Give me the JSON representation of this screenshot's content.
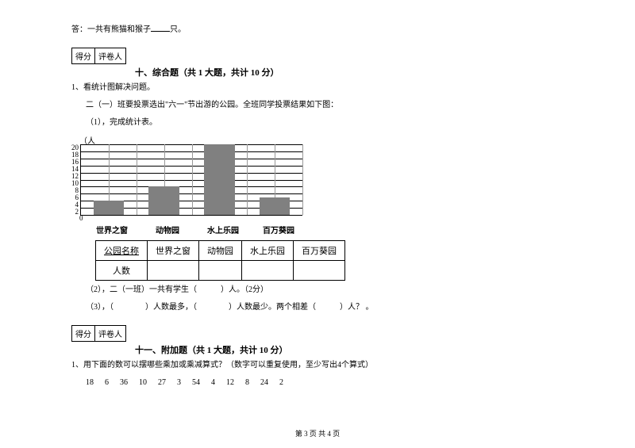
{
  "answer_line": {
    "prefix": "答：一共有熊猫和猴子",
    "suffix": "只。"
  },
  "score_labels": {
    "score": "得分",
    "reviewer": "评卷人"
  },
  "section10": {
    "title": "十、综合题（共 1 大题，共计 10 分）",
    "q1": "1、看统计图解决问题。",
    "q1a": "二（一）班要投票选出\"六一\"节出游的公园。全班同学投票结果如下图：",
    "q1b": "（1），完成统计表。"
  },
  "chart": {
    "ylabel": "（人",
    "yticks": [
      "20",
      "18",
      "16",
      "14",
      "12",
      "10",
      "8",
      "6",
      "4",
      "2",
      "0"
    ],
    "ymax": 20,
    "bar_color": "#808080",
    "grid_color": "#000000",
    "background_color": "#ffffff",
    "categories": [
      "世界之窗",
      "动物园",
      "水上乐园",
      "百万葵园"
    ],
    "values": [
      4,
      8,
      20,
      5
    ]
  },
  "table": {
    "header": [
      "公园名称",
      "世界之窗",
      "动物园",
      "水上乐园",
      "百万葵园"
    ],
    "row_label": "人数"
  },
  "section10_cont": {
    "q2": "（2），二（一班）一共有学生（　　　）人。（2分）",
    "q3": "（3），（　　　　）人数最多，（　　　　）人数最少。两个相差（　　　）人？ 。"
  },
  "section11": {
    "title": "十一、附加题（共 1 大题，共计 10 分）",
    "q1": "1、用下面的数可以摆哪些乘加或乘减算式？（数字可以重复使用，至少写出4个算式）",
    "numbers": [
      "18",
      "6",
      "36",
      "10",
      "27",
      "3",
      "54",
      "4",
      "12",
      "8",
      "24",
      "2"
    ]
  },
  "footer": "第 3 页 共 4 页"
}
